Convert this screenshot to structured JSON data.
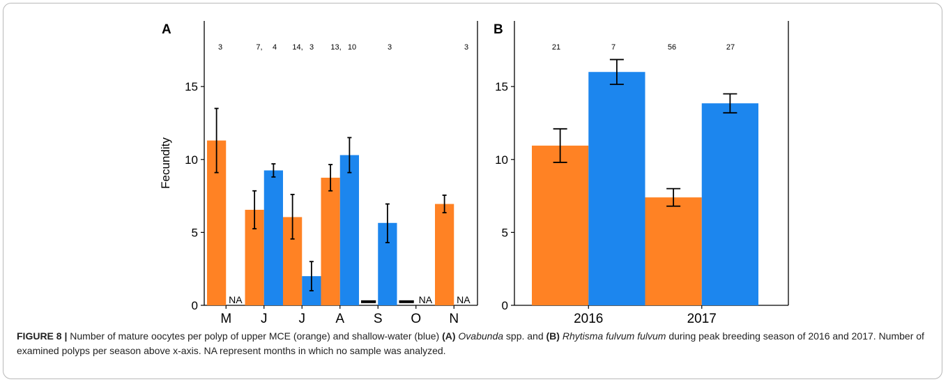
{
  "colors": {
    "mce": "#FF8224",
    "shallow": "#1C86EE",
    "axis": "#000000"
  },
  "chart_data": [
    {
      "type": "bar",
      "panel_label": "A",
      "ylabel": "Fecundity",
      "ylim": [
        0,
        19.5
      ],
      "yticks": [
        0,
        5,
        10,
        15
      ],
      "categories": [
        "M",
        "J",
        "J",
        "A",
        "S",
        "O",
        "N"
      ],
      "series": [
        {
          "color": "mce",
          "values": [
            11.3,
            6.55,
            6.05,
            8.75,
            0.2,
            0.2,
            6.95
          ],
          "err_low": [
            9.1,
            5.25,
            4.55,
            7.85,
            null,
            null,
            6.35
          ],
          "err_high": [
            13.5,
            7.85,
            7.6,
            9.65,
            null,
            null,
            7.55
          ]
        },
        {
          "color": "shallow",
          "values": [
            null,
            9.25,
            2.0,
            10.3,
            5.65,
            null,
            null
          ],
          "err_low": [
            null,
            8.8,
            1.0,
            9.1,
            4.3,
            null,
            null
          ],
          "err_high": [
            null,
            9.7,
            3.0,
            11.5,
            6.95,
            null,
            null
          ]
        }
      ],
      "na_labels": [
        "NA",
        null,
        null,
        null,
        null,
        "NA",
        "NA"
      ],
      "top_labels": [
        "3",
        "7,",
        "4",
        "14,",
        "3",
        "13,",
        "10",
        "3",
        "3"
      ]
    },
    {
      "type": "bar",
      "panel_label": "B",
      "ylim": [
        0,
        19.5
      ],
      "yticks": [
        0,
        5,
        10,
        15
      ],
      "categories": [
        "2016",
        "2017"
      ],
      "series": [
        {
          "color": "mce",
          "values": [
            10.95,
            7.4
          ],
          "err_low": [
            9.8,
            6.8
          ],
          "err_high": [
            12.1,
            8.0
          ]
        },
        {
          "color": "shallow",
          "values": [
            16.0,
            13.85
          ],
          "err_low": [
            15.15,
            13.2
          ],
          "err_high": [
            16.85,
            14.5
          ]
        }
      ],
      "top_labels": [
        "21",
        "7",
        "56",
        "27"
      ]
    }
  ],
  "caption": {
    "figure_label": "FIGURE 8 |",
    "t1": " Number of mature oocytes per polyp of upper MCE (orange) and shallow-water (blue) ",
    "a_label": "(A)",
    "a_species": "Ovabunda",
    "t2": " spp. and ",
    "b_label": "(B)",
    "b_species": "Rhytisma fulvum fulvum",
    "t3": " during peak breeding season of 2016 and 2017. Number of examined polyps per season above x-axis. NA represent months in which no sample was analyzed."
  }
}
